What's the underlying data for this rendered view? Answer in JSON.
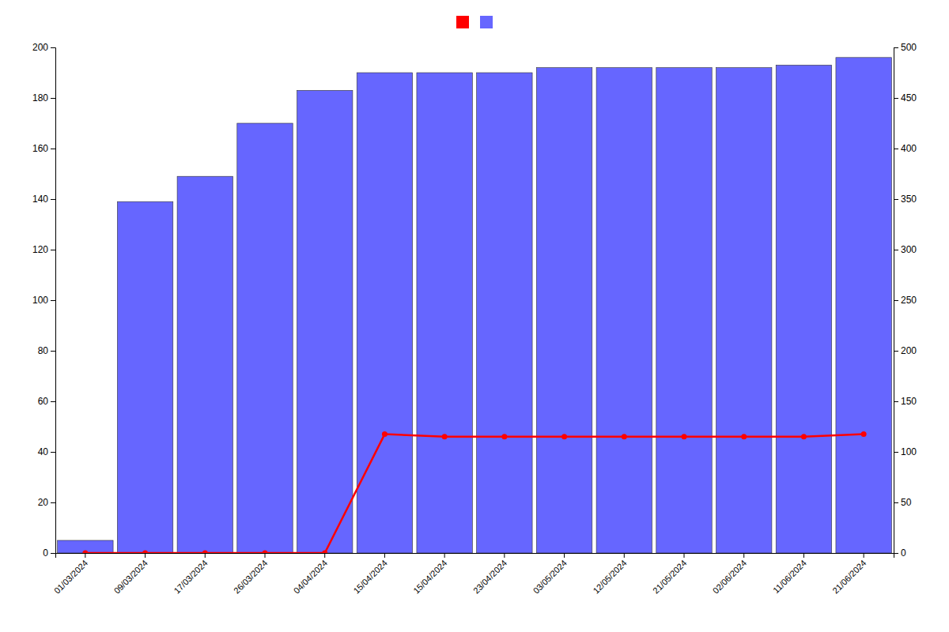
{
  "chart_data": {
    "type": "bar",
    "categories": [
      "01/03/2024",
      "09/03/2024",
      "17/03/2024",
      "26/03/2024",
      "04/04/2024",
      "15/04/2024",
      "15/04/2024",
      "23/04/2024",
      "03/05/2024",
      "12/05/2024",
      "21/05/2024",
      "02/06/2024",
      "11/06/2024",
      "21/06/2024"
    ],
    "series": [
      {
        "type": "line",
        "color": "#ff0000",
        "marker": "circle",
        "values": [
          0,
          0,
          0,
          0,
          0,
          47,
          46,
          46,
          46,
          46,
          46,
          46,
          46,
          47
        ]
      },
      {
        "type": "bar",
        "color": "#6666ff",
        "values": [
          5,
          139,
          149,
          170,
          183,
          190,
          190,
          190,
          192,
          192,
          192,
          192,
          193,
          196
        ]
      }
    ],
    "ylim": [
      0,
      200
    ],
    "yticks": [
      0,
      20,
      40,
      60,
      80,
      100,
      120,
      140,
      160,
      180,
      200
    ],
    "y2lim": [
      0,
      500
    ],
    "y2ticks": [
      0,
      50,
      100,
      150,
      200,
      250,
      300,
      350,
      400,
      450,
      500
    ],
    "grid": false,
    "legend": "top"
  }
}
